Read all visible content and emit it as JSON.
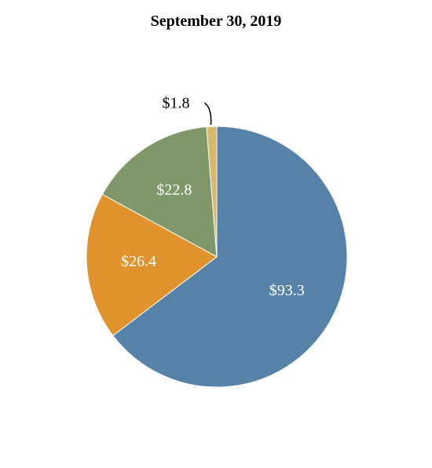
{
  "chart_data": {
    "type": "pie",
    "title": "September 30, 2019",
    "slices": [
      {
        "label": "$93.3",
        "value": 93.3,
        "color": "#5682a8",
        "label_color": "#ffffff",
        "callout": false
      },
      {
        "label": "$26.4",
        "value": 26.4,
        "color": "#e0932c",
        "label_color": "#ffffff",
        "callout": false
      },
      {
        "label": "$22.8",
        "value": 22.8,
        "color": "#809869",
        "label_color": "#ffffff",
        "callout": false
      },
      {
        "label": "$1.8",
        "value": 1.8,
        "color": "#d4b86c",
        "label_color": "#000000",
        "callout": true
      }
    ],
    "start": "12 o'clock",
    "direction": "clockwise"
  }
}
